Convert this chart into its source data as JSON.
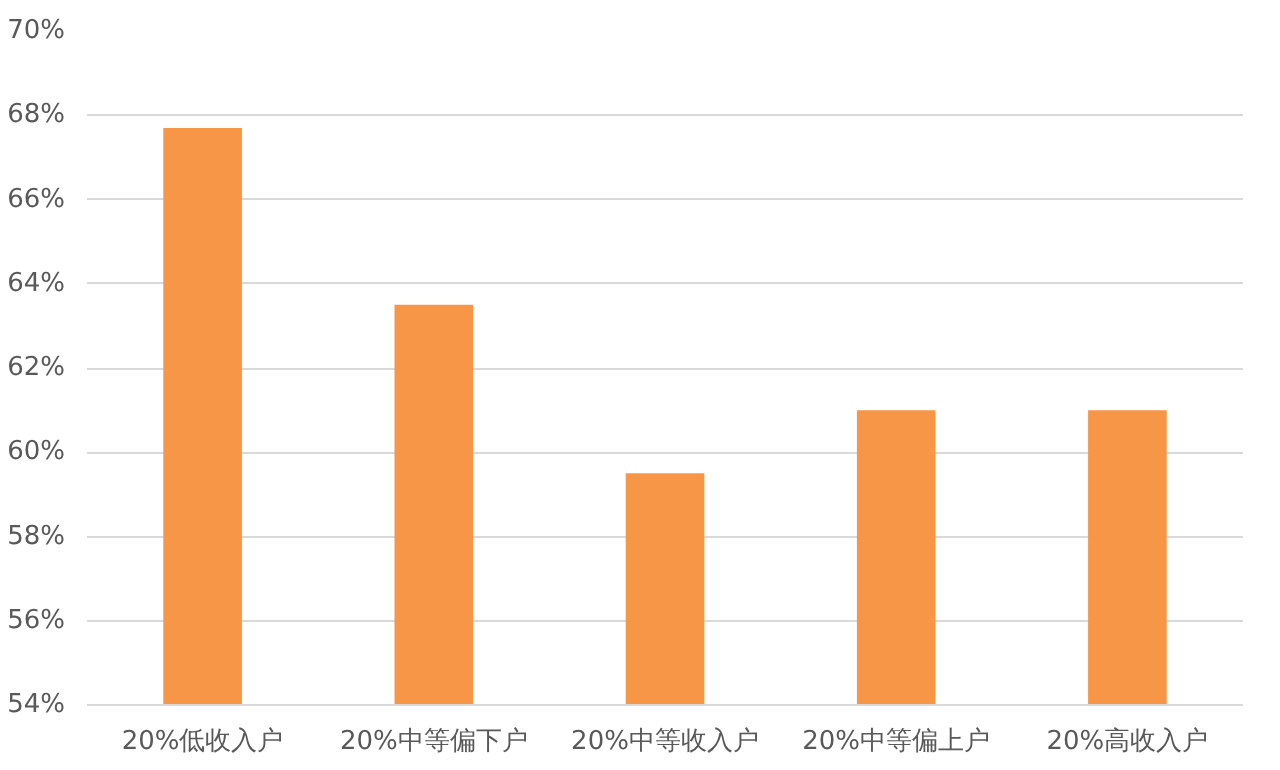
{
  "chart_data": {
    "type": "bar",
    "categories": [
      "20%低收入户",
      "20%中等偏下户",
      "20%中等收入户",
      "20%中等偏上户",
      "20%高收入户"
    ],
    "values": [
      67.7,
      63.5,
      59.5,
      61.0,
      61.0
    ],
    "color": "#f79646",
    "ylim": [
      54,
      70
    ],
    "yticks": [
      {
        "value": 54,
        "label": "54%"
      },
      {
        "value": 56,
        "label": "56%"
      },
      {
        "value": 58,
        "label": "58%"
      },
      {
        "value": 60,
        "label": "60%"
      },
      {
        "value": 62,
        "label": "62%"
      },
      {
        "value": 64,
        "label": "64%"
      },
      {
        "value": 66,
        "label": "66%"
      },
      {
        "value": 68,
        "label": "68%"
      },
      {
        "value": 70,
        "label": "70%"
      }
    ],
    "grid": "y"
  }
}
